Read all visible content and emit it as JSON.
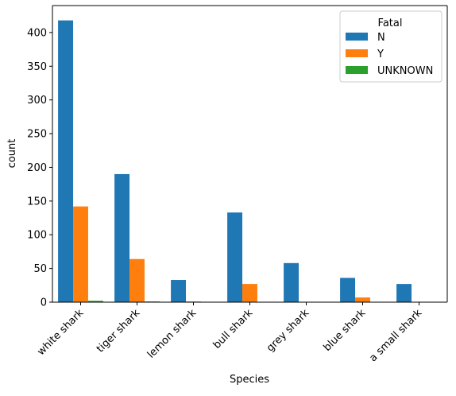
{
  "chart_data": {
    "type": "bar",
    "title": "",
    "xlabel": "Species",
    "ylabel": "count",
    "ylim": [
      0,
      440
    ],
    "yticks": [
      0,
      50,
      100,
      150,
      200,
      250,
      300,
      350,
      400
    ],
    "categories": [
      "white shark",
      "tiger shark",
      "lemon shark",
      "bull shark",
      "grey shark",
      "blue shark",
      "a small shark"
    ],
    "legend": {
      "title": "Fatal",
      "placement": "top-right"
    },
    "grid": false,
    "series": [
      {
        "name": "N",
        "color": "#1f77b4",
        "values": [
          418,
          190,
          33,
          133,
          58,
          36,
          27
        ]
      },
      {
        "name": "Y",
        "color": "#ff7f0e",
        "values": [
          142,
          64,
          1,
          27,
          0,
          7,
          0
        ]
      },
      {
        "name": "UNKNOWN",
        "color": "#2ca02c",
        "values": [
          2,
          1,
          0,
          0,
          0,
          0,
          0
        ]
      }
    ]
  }
}
